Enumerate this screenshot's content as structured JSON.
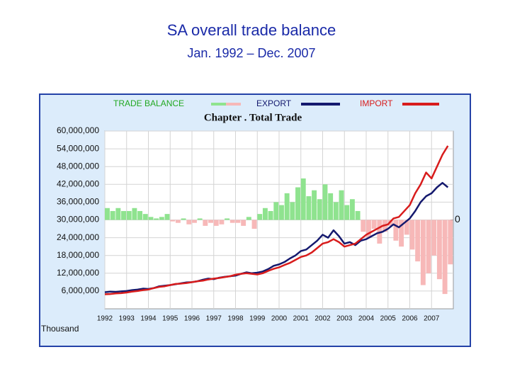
{
  "header": {
    "title": "SA overall trade balance",
    "subtitle": "Jan. 1992 – Dec. 2007"
  },
  "chart_data": {
    "type": "line",
    "title": "Chapter . Total Trade",
    "y_label": "Thousand",
    "grid": true,
    "legend": "top",
    "xlim": [
      1992,
      2008
    ],
    "xticks": [
      1992,
      1993,
      1994,
      1995,
      1996,
      1997,
      1998,
      1999,
      2000,
      2001,
      2002,
      2003,
      2004,
      2005,
      2006,
      2007
    ],
    "ylim": [
      0,
      60000000
    ],
    "yticks": [
      {
        "value": 6000000,
        "label": "6,000,000"
      },
      {
        "value": 12000000,
        "label": "12,000,000"
      },
      {
        "value": 18000000,
        "label": "18,000,000"
      },
      {
        "value": 24000000,
        "label": "24,000,000"
      },
      {
        "value": 30000000,
        "label": "30,000,000"
      },
      {
        "value": 36000000,
        "label": "36,000,000"
      },
      {
        "value": 42000000,
        "label": "42,000,000"
      },
      {
        "value": 48000000,
        "label": "48,000,000"
      },
      {
        "value": 54000000,
        "label": "54,000,000"
      },
      {
        "value": 60000000,
        "label": "60,000,000"
      }
    ],
    "y2lim": [
      -30000000,
      30000000
    ],
    "y2ticks": [
      0
    ],
    "x": [
      1992,
      1992.25,
      1992.5,
      1992.75,
      1993,
      1993.25,
      1993.5,
      1993.75,
      1994,
      1994.25,
      1994.5,
      1994.75,
      1995,
      1995.25,
      1995.5,
      1995.75,
      1996,
      1996.25,
      1996.5,
      1996.75,
      1997,
      1997.25,
      1997.5,
      1997.75,
      1998,
      1998.25,
      1998.5,
      1998.75,
      1999,
      1999.25,
      1999.5,
      1999.75,
      2000,
      2000.25,
      2000.5,
      2000.75,
      2001,
      2001.25,
      2001.5,
      2001.75,
      2002,
      2002.25,
      2002.5,
      2002.75,
      2003,
      2003.25,
      2003.5,
      2003.75,
      2004,
      2004.25,
      2004.5,
      2004.75,
      2005,
      2005.25,
      2005.5,
      2005.75,
      2006,
      2006.25,
      2006.5,
      2006.75,
      2007,
      2007.25,
      2007.5,
      2007.75
    ],
    "series": [
      {
        "name": "TRADE BALANCE",
        "type": "bar",
        "axis": "y2",
        "color": "#8fe38f",
        "negative_color": "#f7b8b8",
        "values": [
          4000000,
          3000000,
          4000000,
          3000000,
          3000000,
          4000000,
          3000000,
          2000000,
          1000000,
          500000,
          1000000,
          2000000,
          -500000,
          -1000000,
          500000,
          -1500000,
          -1000000,
          500000,
          -2000000,
          -1000000,
          -2000000,
          -1500000,
          500000,
          -1000000,
          -1000000,
          -2000000,
          1000000,
          -3000000,
          2000000,
          4000000,
          3000000,
          6000000,
          5000000,
          9000000,
          6000000,
          11000000,
          14000000,
          8000000,
          10000000,
          7000000,
          12000000,
          9000000,
          6000000,
          10000000,
          5000000,
          7000000,
          3000000,
          -4000000,
          -6000000,
          -3000000,
          -8000000,
          -4000000,
          -2000000,
          -7000000,
          -9000000,
          -5000000,
          -10000000,
          -14000000,
          -22000000,
          -18000000,
          -12000000,
          -20000000,
          -25000000,
          -15000000
        ]
      },
      {
        "name": "EXPORT",
        "color": "#14196e",
        "values": [
          5600000,
          5800000,
          5700000,
          5900000,
          6000000,
          6300000,
          6500000,
          6800000,
          6700000,
          7000000,
          7600000,
          7800000,
          8000000,
          8300000,
          8600000,
          8900000,
          9000000,
          9300000,
          9800000,
          10200000,
          10000000,
          10500000,
          10800000,
          11000000,
          11200000,
          11800000,
          12300000,
          12000000,
          12200000,
          12600000,
          13400000,
          14500000,
          15000000,
          15800000,
          17000000,
          18000000,
          19500000,
          20000000,
          21500000,
          23000000,
          25000000,
          24000000,
          26500000,
          24500000,
          22000000,
          22500000,
          21500000,
          23000000,
          23500000,
          24500000,
          25500000,
          26000000,
          27000000,
          28500000,
          27500000,
          29000000,
          30500000,
          33000000,
          36000000,
          38000000,
          39000000,
          41000000,
          42500000,
          41000000
        ]
      },
      {
        "name": "IMPORT",
        "color": "#d81c1c",
        "values": [
          4900000,
          5000000,
          5200000,
          5300000,
          5500000,
          5800000,
          6000000,
          6300000,
          6500000,
          7000000,
          7400000,
          7600000,
          8000000,
          8400000,
          8500000,
          8700000,
          9000000,
          9300000,
          9500000,
          9900000,
          10200000,
          10400000,
          10700000,
          11000000,
          11500000,
          11800000,
          12000000,
          11800000,
          11600000,
          12000000,
          12800000,
          13500000,
          14000000,
          14800000,
          15500000,
          16500000,
          17500000,
          18000000,
          19000000,
          20500000,
          22000000,
          22500000,
          23500000,
          22500000,
          21000000,
          21500000,
          22000000,
          23500000,
          25000000,
          26000000,
          27000000,
          28000000,
          28500000,
          30500000,
          31000000,
          33000000,
          35000000,
          39000000,
          42000000,
          46000000,
          44000000,
          48000000,
          52000000,
          55000000
        ]
      }
    ]
  }
}
